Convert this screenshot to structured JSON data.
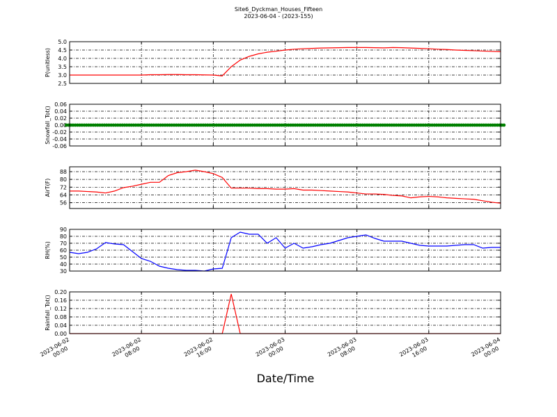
{
  "figure": {
    "title": "Site6_Dyckman_Houses_Fifteen",
    "subtitle": "2023-06-04 - (2023-155)",
    "xlabel": "Date/Time"
  },
  "chart_data": [
    {
      "type": "line",
      "ylabel": "P(unitless)",
      "color": "#ff0000",
      "grid": true,
      "xlim": [
        "2023-06-02 00:00",
        "2023-06-04 00:00"
      ],
      "xticks": [
        "2023-06-02 00:00",
        "2023-06-02 08:00",
        "2023-06-02 16:00",
        "2023-06-03 00:00",
        "2023-06-03 08:00",
        "2023-06-03 16:00",
        "2023-06-04 00:00"
      ],
      "ylim": [
        2.5,
        5.0
      ],
      "yticks": [
        {
          "value": 2.5,
          "label": "2.5"
        },
        {
          "value": 3,
          "label": "3.0"
        },
        3.5,
        {
          "value": 4,
          "label": "4.0"
        },
        4.5,
        {
          "value": 5,
          "label": "5.0"
        }
      ],
      "x": [
        "2023-06-02 00:00",
        "2023-06-02 01:00",
        "2023-06-02 02:00",
        "2023-06-02 03:00",
        "2023-06-02 04:00",
        "2023-06-02 05:00",
        "2023-06-02 06:00",
        "2023-06-02 07:00",
        "2023-06-02 08:00",
        "2023-06-02 09:00",
        "2023-06-02 10:00",
        "2023-06-02 11:00",
        "2023-06-02 12:00",
        "2023-06-02 13:00",
        "2023-06-02 14:00",
        "2023-06-02 15:00",
        "2023-06-02 16:00",
        "2023-06-02 17:00",
        "2023-06-02 18:00",
        "2023-06-02 19:00",
        "2023-06-02 20:00",
        "2023-06-02 21:00",
        "2023-06-02 22:00",
        "2023-06-02 23:00",
        "2023-06-03 00:00",
        "2023-06-03 01:00",
        "2023-06-03 02:00",
        "2023-06-03 03:00",
        "2023-06-03 04:00",
        "2023-06-03 05:00",
        "2023-06-03 06:00",
        "2023-06-03 07:00",
        "2023-06-03 08:00",
        "2023-06-03 09:00",
        "2023-06-03 10:00",
        "2023-06-03 11:00",
        "2023-06-03 12:00",
        "2023-06-03 13:00",
        "2023-06-03 14:00",
        "2023-06-03 15:00",
        "2023-06-03 16:00",
        "2023-06-03 17:00",
        "2023-06-03 18:00",
        "2023-06-03 19:00",
        "2023-06-03 20:00",
        "2023-06-03 21:00",
        "2023-06-03 22:00",
        "2023-06-03 23:00",
        "2023-06-04 00:00"
      ],
      "values": [
        3.0,
        3.0,
        3.0,
        3.0,
        3.0,
        3.0,
        3.0,
        3.0,
        3.0,
        3.02,
        3.02,
        3.03,
        3.03,
        3.02,
        3.02,
        3.01,
        3.0,
        2.95,
        3.5,
        3.9,
        4.12,
        4.27,
        4.37,
        4.43,
        4.5,
        4.55,
        4.58,
        4.6,
        4.62,
        4.63,
        4.64,
        4.65,
        4.65,
        4.65,
        4.64,
        4.63,
        4.65,
        4.64,
        4.62,
        4.6,
        4.58,
        4.55,
        4.53,
        4.5,
        4.48,
        4.46,
        4.44,
        4.42,
        4.4
      ]
    },
    {
      "type": "line",
      "ylabel": "Snowfall_Tot()",
      "color": "#008000",
      "markers": true,
      "grid": true,
      "xlim": [
        "2023-06-02 00:00",
        "2023-06-04 00:00"
      ],
      "xticks": [
        "2023-06-02 00:00",
        "2023-06-02 08:00",
        "2023-06-02 16:00",
        "2023-06-03 00:00",
        "2023-06-03 08:00",
        "2023-06-03 16:00",
        "2023-06-04 00:00"
      ],
      "ylim": [
        -0.06,
        0.06
      ],
      "yticks": [
        -0.06,
        -0.04,
        -0.02,
        {
          "value": 0,
          "label": "0.00"
        },
        0.02,
        0.04,
        0.06
      ],
      "x": [
        "2023-06-02 00:00",
        "2023-06-02 01:00",
        "2023-06-02 02:00",
        "2023-06-02 03:00",
        "2023-06-02 04:00",
        "2023-06-02 05:00",
        "2023-06-02 06:00",
        "2023-06-02 07:00",
        "2023-06-02 08:00",
        "2023-06-02 09:00",
        "2023-06-02 10:00",
        "2023-06-02 11:00",
        "2023-06-02 12:00",
        "2023-06-02 13:00",
        "2023-06-02 14:00",
        "2023-06-02 15:00",
        "2023-06-02 16:00",
        "2023-06-02 17:00",
        "2023-06-02 18:00",
        "2023-06-02 19:00",
        "2023-06-02 20:00",
        "2023-06-02 21:00",
        "2023-06-02 22:00",
        "2023-06-02 23:00",
        "2023-06-03 00:00",
        "2023-06-03 01:00",
        "2023-06-03 02:00",
        "2023-06-03 03:00",
        "2023-06-03 04:00",
        "2023-06-03 05:00",
        "2023-06-03 06:00",
        "2023-06-03 07:00",
        "2023-06-03 08:00",
        "2023-06-03 09:00",
        "2023-06-03 10:00",
        "2023-06-03 11:00",
        "2023-06-03 12:00",
        "2023-06-03 13:00",
        "2023-06-03 14:00",
        "2023-06-03 15:00",
        "2023-06-03 16:00",
        "2023-06-03 17:00",
        "2023-06-03 18:00",
        "2023-06-03 19:00",
        "2023-06-03 20:00",
        "2023-06-03 21:00",
        "2023-06-03 22:00",
        "2023-06-03 23:00",
        "2023-06-04 00:00"
      ],
      "values": [
        0,
        0,
        0,
        0,
        0,
        0,
        0,
        0,
        0,
        0,
        0,
        0,
        0,
        0,
        0,
        0,
        0,
        0,
        0,
        0,
        0,
        0,
        0,
        0,
        0,
        0,
        0,
        0,
        0,
        0,
        0,
        0,
        0,
        0,
        0,
        0,
        0,
        0,
        0,
        0,
        0,
        0,
        0,
        0,
        0,
        0,
        0,
        0,
        0
      ]
    },
    {
      "type": "line",
      "ylabel": "AirT(F)",
      "color": "#ff0000",
      "grid": true,
      "xlim": [
        "2023-06-02 00:00",
        "2023-06-04 00:00"
      ],
      "xticks": [
        "2023-06-02 00:00",
        "2023-06-02 08:00",
        "2023-06-02 16:00",
        "2023-06-03 00:00",
        "2023-06-03 08:00",
        "2023-06-03 16:00",
        "2023-06-04 00:00"
      ],
      "ylim": [
        50,
        93
      ],
      "yticks": [
        56,
        64,
        72,
        80,
        88
      ],
      "x": [
        "2023-06-02 00:00",
        "2023-06-02 01:00",
        "2023-06-02 02:00",
        "2023-06-02 03:00",
        "2023-06-02 04:00",
        "2023-06-02 05:00",
        "2023-06-02 06:00",
        "2023-06-02 07:00",
        "2023-06-02 08:00",
        "2023-06-02 09:00",
        "2023-06-02 10:00",
        "2023-06-02 11:00",
        "2023-06-02 12:00",
        "2023-06-02 13:00",
        "2023-06-02 14:00",
        "2023-06-02 15:00",
        "2023-06-02 16:00",
        "2023-06-02 17:00",
        "2023-06-02 18:00",
        "2023-06-02 19:00",
        "2023-06-02 20:00",
        "2023-06-02 21:00",
        "2023-06-02 22:00",
        "2023-06-02 23:00",
        "2023-06-03 00:00",
        "2023-06-03 01:00",
        "2023-06-03 02:00",
        "2023-06-03 03:00",
        "2023-06-03 04:00",
        "2023-06-03 05:00",
        "2023-06-03 06:00",
        "2023-06-03 07:00",
        "2023-06-03 08:00",
        "2023-06-03 09:00",
        "2023-06-03 10:00",
        "2023-06-03 11:00",
        "2023-06-03 12:00",
        "2023-06-03 13:00",
        "2023-06-03 14:00",
        "2023-06-03 15:00",
        "2023-06-03 16:00",
        "2023-06-03 17:00",
        "2023-06-03 18:00",
        "2023-06-03 19:00",
        "2023-06-03 20:00",
        "2023-06-03 21:00",
        "2023-06-03 22:00",
        "2023-06-03 23:00",
        "2023-06-04 00:00"
      ],
      "values": [
        68,
        68,
        67.5,
        67,
        66,
        68,
        71.5,
        73,
        75,
        77,
        77,
        84,
        87,
        88,
        89.5,
        88,
        86,
        82,
        71,
        71,
        71,
        70.5,
        70.5,
        70,
        70,
        70.5,
        69,
        69,
        68.5,
        68,
        67.5,
        67,
        66,
        65,
        65,
        64.5,
        63.5,
        63,
        61,
        62,
        62.5,
        62,
        61,
        60.5,
        60,
        59.5,
        58,
        56.5,
        55.5
      ]
    },
    {
      "type": "line",
      "ylabel": "RH(%)",
      "color": "#0000ff",
      "grid": true,
      "xlim": [
        "2023-06-02 00:00",
        "2023-06-04 00:00"
      ],
      "xticks": [
        "2023-06-02 00:00",
        "2023-06-02 08:00",
        "2023-06-02 16:00",
        "2023-06-03 00:00",
        "2023-06-03 08:00",
        "2023-06-03 16:00",
        "2023-06-04 00:00"
      ],
      "ylim": [
        30,
        90
      ],
      "yticks": [
        30,
        40,
        50,
        60,
        70,
        80,
        90
      ],
      "x": [
        "2023-06-02 00:00",
        "2023-06-02 01:00",
        "2023-06-02 02:00",
        "2023-06-02 03:00",
        "2023-06-02 04:00",
        "2023-06-02 05:00",
        "2023-06-02 06:00",
        "2023-06-02 07:00",
        "2023-06-02 08:00",
        "2023-06-02 09:00",
        "2023-06-02 10:00",
        "2023-06-02 11:00",
        "2023-06-02 12:00",
        "2023-06-02 13:00",
        "2023-06-02 14:00",
        "2023-06-02 15:00",
        "2023-06-02 16:00",
        "2023-06-02 17:00",
        "2023-06-02 18:00",
        "2023-06-02 19:00",
        "2023-06-02 20:00",
        "2023-06-02 21:00",
        "2023-06-02 22:00",
        "2023-06-02 23:00",
        "2023-06-03 00:00",
        "2023-06-03 01:00",
        "2023-06-03 02:00",
        "2023-06-03 03:00",
        "2023-06-03 04:00",
        "2023-06-03 05:00",
        "2023-06-03 06:00",
        "2023-06-03 07:00",
        "2023-06-03 08:00",
        "2023-06-03 09:00",
        "2023-06-03 10:00",
        "2023-06-03 11:00",
        "2023-06-03 12:00",
        "2023-06-03 13:00",
        "2023-06-03 14:00",
        "2023-06-03 15:00",
        "2023-06-03 16:00",
        "2023-06-03 17:00",
        "2023-06-03 18:00",
        "2023-06-03 19:00",
        "2023-06-03 20:00",
        "2023-06-03 21:00",
        "2023-06-03 22:00",
        "2023-06-03 23:00",
        "2023-06-04 00:00"
      ],
      "values": [
        57,
        55,
        57,
        62,
        71,
        69,
        68,
        58,
        48,
        44,
        37,
        34,
        32,
        31,
        31,
        30,
        33,
        34,
        78,
        86,
        83,
        83,
        70,
        78,
        63,
        70,
        63,
        65,
        68,
        70,
        74,
        78,
        80,
        82,
        77,
        73,
        73,
        73,
        70,
        67,
        66,
        66,
        66,
        67,
        68,
        68,
        63,
        64,
        64
      ]
    },
    {
      "type": "line",
      "ylabel": "Rainfall_Tot()",
      "color": "#ff0000",
      "grid": true,
      "xlim": [
        "2023-06-02 00:00",
        "2023-06-04 00:00"
      ],
      "xticks": [
        {
          "value": "2023-06-02 00:00",
          "label": "2023-06-02\n00:00"
        },
        {
          "value": "2023-06-02 08:00",
          "label": "2023-06-02\n08:00"
        },
        {
          "value": "2023-06-02 16:00",
          "label": "2023-06-02\n16:00"
        },
        {
          "value": "2023-06-03 00:00",
          "label": "2023-06-03\n00:00"
        },
        {
          "value": "2023-06-03 08:00",
          "label": "2023-06-03\n08:00"
        },
        {
          "value": "2023-06-03 16:00",
          "label": "2023-06-03\n16:00"
        },
        {
          "value": "2023-06-04 00:00",
          "label": "2023-06-04\n00:00"
        }
      ],
      "ylim": [
        0,
        0.2
      ],
      "yticks": [
        {
          "value": 0,
          "label": "0.00"
        },
        0.04,
        0.08,
        0.12,
        0.16,
        {
          "value": 0.2,
          "label": "0.20"
        }
      ],
      "x": [
        "2023-06-02 00:00",
        "2023-06-02 01:00",
        "2023-06-02 02:00",
        "2023-06-02 03:00",
        "2023-06-02 04:00",
        "2023-06-02 05:00",
        "2023-06-02 06:00",
        "2023-06-02 07:00",
        "2023-06-02 08:00",
        "2023-06-02 09:00",
        "2023-06-02 10:00",
        "2023-06-02 11:00",
        "2023-06-02 12:00",
        "2023-06-02 13:00",
        "2023-06-02 14:00",
        "2023-06-02 15:00",
        "2023-06-02 16:00",
        "2023-06-02 17:00",
        "2023-06-02 18:00",
        "2023-06-02 19:00",
        "2023-06-02 20:00",
        "2023-06-02 21:00",
        "2023-06-02 22:00",
        "2023-06-02 23:00",
        "2023-06-03 00:00",
        "2023-06-03 01:00",
        "2023-06-03 02:00",
        "2023-06-03 03:00",
        "2023-06-03 04:00",
        "2023-06-03 05:00",
        "2023-06-03 06:00",
        "2023-06-03 07:00",
        "2023-06-03 08:00",
        "2023-06-03 09:00",
        "2023-06-03 10:00",
        "2023-06-03 11:00",
        "2023-06-03 12:00",
        "2023-06-03 13:00",
        "2023-06-03 14:00",
        "2023-06-03 15:00",
        "2023-06-03 16:00",
        "2023-06-03 17:00",
        "2023-06-03 18:00",
        "2023-06-03 19:00",
        "2023-06-03 20:00",
        "2023-06-03 21:00",
        "2023-06-03 22:00",
        "2023-06-03 23:00",
        "2023-06-04 00:00"
      ],
      "values": [
        0,
        0,
        0,
        0,
        0,
        0,
        0,
        0,
        0,
        0,
        0,
        0,
        0,
        0,
        0,
        0,
        0,
        0,
        0.19,
        0,
        0,
        0,
        0,
        0,
        0,
        0,
        0,
        0,
        0,
        0,
        0,
        0,
        0,
        0,
        0,
        0,
        0,
        0,
        0,
        0,
        0,
        0,
        0,
        0,
        0,
        0,
        0,
        0,
        0
      ]
    }
  ]
}
